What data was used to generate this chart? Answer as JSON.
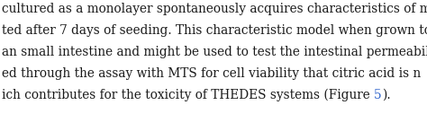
{
  "lines": [
    "cultured as a monolayer spontaneously acquires characteristics of mat",
    "ted after 7 days of seeding. This characteristic model when grown to co",
    "an small intestine and might be used to test the intestinal permeability",
    "ed through the assay with MTS for cell viability that citric acid is n",
    "ich contributes for the toxicity of THEDES systems (Figure 5)."
  ],
  "link_line_index": 4,
  "link_before": "ich contributes for the toxicity of THEDES systems (Figure ",
  "link_text": "5",
  "link_after": ").",
  "background_color": "#ffffff",
  "text_color": "#1a1a1a",
  "link_color": "#3366cc",
  "font_size": 9.8,
  "figwidth": 4.74,
  "figheight": 1.27,
  "dpi": 100
}
